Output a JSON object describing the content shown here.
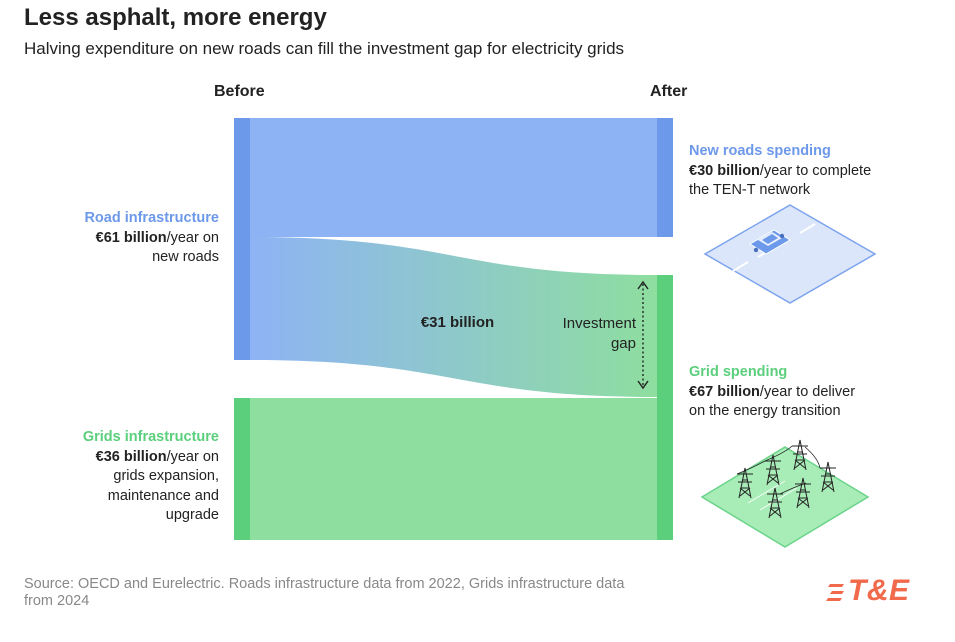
{
  "title": "Less asphalt, more energy",
  "subtitle": "Halving expenditure on new roads can fill the investment gap for electricity grids",
  "columns": {
    "before": "Before",
    "after": "After"
  },
  "left_nodes": {
    "road": {
      "name": "Road infrastructure",
      "value": "€61 billion",
      "line1": "/year on",
      "line2": "new roads"
    },
    "grid": {
      "name": "Grids infrastructure",
      "value": "€36 billion",
      "line1": "/year on",
      "line2": "grids expansion,",
      "line3": "maintenance and",
      "line4": "upgrade"
    }
  },
  "right_nodes": {
    "roads": {
      "name": "New roads spending",
      "value": "€30 billion",
      "line1": "/year to complete",
      "line2": "the TEN-T network"
    },
    "grid": {
      "name": "Grid spending",
      "value": "€67 billion",
      "line1": "/year to deliver",
      "line2": "on the energy transition"
    }
  },
  "transfer_label": "€31 billion",
  "gap_label": {
    "line1": "Investment",
    "line2": "gap"
  },
  "source": {
    "line1": "Source: OECD and Eurelectric. Roads infrastructure data from 2022, Grids infrastructure data",
    "line2": "from 2024"
  },
  "logo": "T&E",
  "flows": [
    {
      "from": "Road infrastructure",
      "to": "New roads spending",
      "value": 30
    },
    {
      "from": "Road infrastructure",
      "to": "Grid spending",
      "value": 31
    },
    {
      "from": "Grids infrastructure",
      "to": "Grid spending",
      "value": 36
    }
  ],
  "colors": {
    "road_light": "#8eb3f5",
    "road_dark": "#6d99ea",
    "grid_light": "#8ede9f",
    "grid_dark": "#5ccf7d",
    "source_text": "#888888",
    "logo": "#f06a4b"
  },
  "icons": [
    "car-road-tile-icon",
    "power-pylons-tile-icon"
  ]
}
